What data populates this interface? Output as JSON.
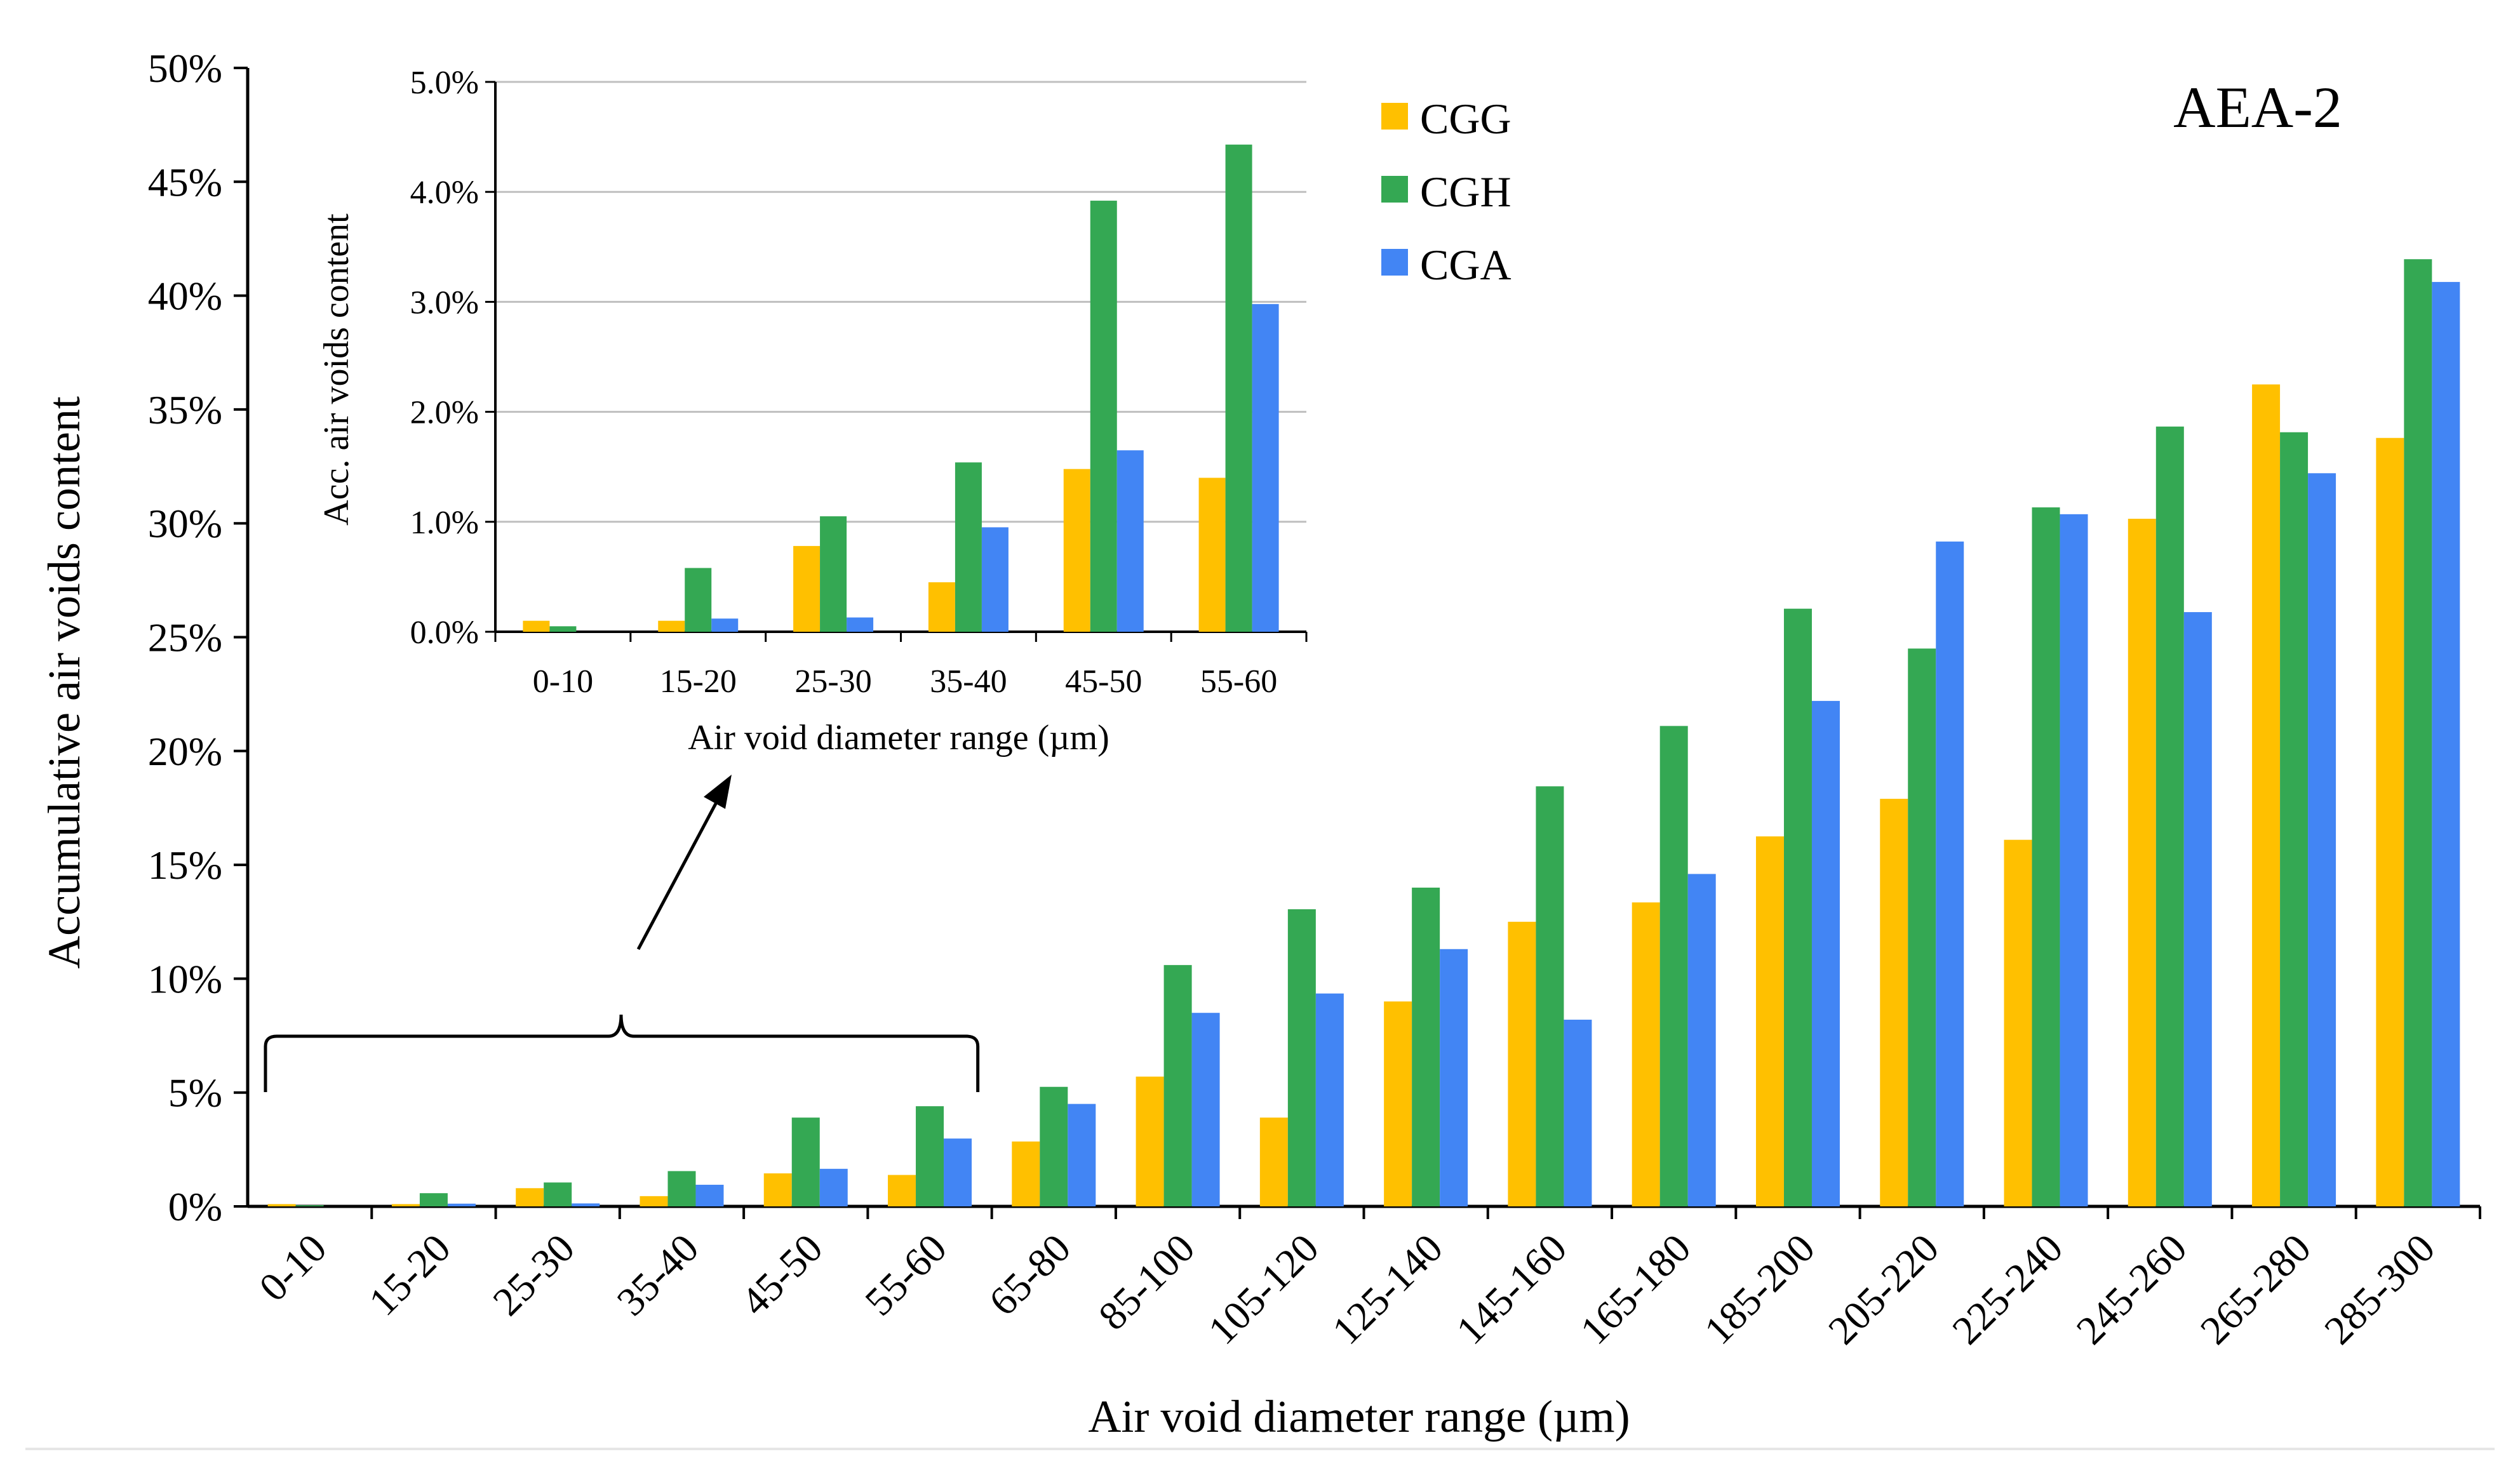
{
  "chart_data": [
    {
      "id": "main",
      "type": "bar",
      "title": "AEA-2",
      "xlabel": "Air void diameter range  (µm)",
      "ylabel": "Accumulative air voids content",
      "ylim": [
        0,
        50
      ],
      "y_ticks": [
        "0%",
        "5%",
        "10%",
        "15%",
        "20%",
        "25%",
        "30%",
        "35%",
        "40%",
        "45%",
        "50%"
      ],
      "grid": false,
      "legend_position": "top-center",
      "categories": [
        "0-10",
        "15-20",
        "25-30",
        "35-40",
        "45-50",
        "55-60",
        "65-80",
        "85-100",
        "105-120",
        "125-140",
        "145-160",
        "165-180",
        "185-200",
        "205-220",
        "225-240",
        "245-260",
        "265-280",
        "285-300"
      ],
      "series": [
        {
          "name": "CGG",
          "color": "#FFC000",
          "values": [
            0.1,
            0.1,
            0.8,
            0.45,
            1.45,
            1.38,
            2.85,
            5.7,
            3.9,
            9.0,
            12.5,
            13.35,
            16.25,
            17.9,
            16.1,
            30.2,
            36.1,
            33.75
          ]
        },
        {
          "name": "CGH",
          "color": "#34A853",
          "values": [
            0.05,
            0.58,
            1.05,
            1.55,
            3.9,
            4.4,
            5.25,
            10.6,
            13.05,
            14.0,
            18.45,
            21.1,
            26.25,
            24.5,
            30.7,
            34.25,
            34.0,
            41.6
          ]
        },
        {
          "name": "CGA",
          "color": "#4285F4",
          "values": [
            0.0,
            0.12,
            0.13,
            0.95,
            1.65,
            2.98,
            4.5,
            8.5,
            9.35,
            11.3,
            8.2,
            14.6,
            22.2,
            29.2,
            30.4,
            26.1,
            32.2,
            40.6
          ]
        }
      ]
    },
    {
      "id": "inset",
      "type": "bar",
      "title": "",
      "xlabel": "Air void diameter range (µm)",
      "ylabel": "Acc. air voids content",
      "ylim": [
        0,
        5
      ],
      "y_ticks": [
        "0.0%",
        "1.0%",
        "2.0%",
        "3.0%",
        "4.0%",
        "5.0%"
      ],
      "grid": true,
      "categories": [
        "0-10",
        "15-20",
        "25-30",
        "35-40",
        "45-50",
        "55-60"
      ],
      "series": [
        {
          "name": "CGG",
          "color": "#FFC000",
          "values": [
            0.1,
            0.1,
            0.78,
            0.45,
            1.48,
            1.4
          ]
        },
        {
          "name": "CGH",
          "color": "#34A853",
          "values": [
            0.05,
            0.58,
            1.05,
            1.54,
            3.92,
            4.43
          ]
        },
        {
          "name": "CGA",
          "color": "#4285F4",
          "values": [
            0.0,
            0.12,
            0.13,
            0.95,
            1.65,
            2.98
          ]
        }
      ]
    }
  ]
}
